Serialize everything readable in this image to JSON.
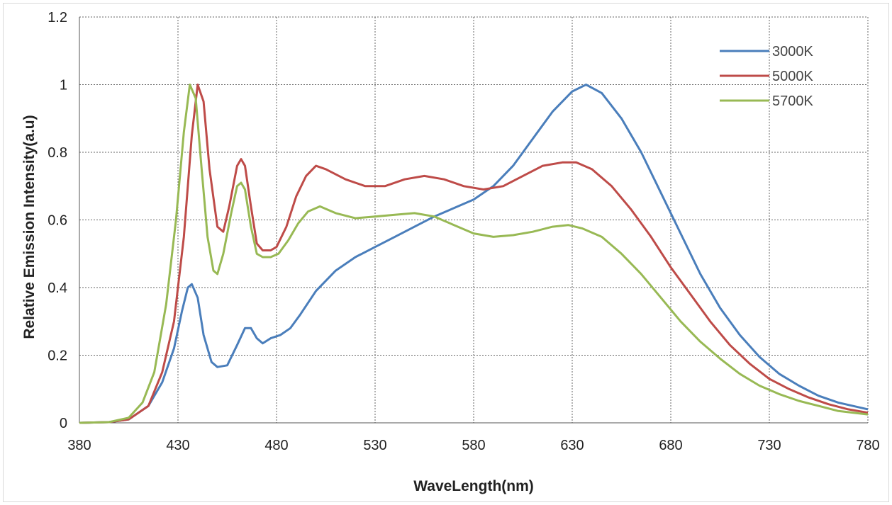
{
  "chart_data": {
    "type": "line",
    "xlabel": "WaveLength(nm)",
    "ylabel": "Relative Emission Intensity(a.u)",
    "xlim": [
      380,
      780
    ],
    "ylim": [
      0,
      1.2
    ],
    "x_ticks": [
      380,
      430,
      480,
      530,
      580,
      630,
      680,
      730,
      780
    ],
    "x_tick_labels": [
      "380",
      "430",
      "480",
      "530",
      "580",
      "630",
      "680",
      "730",
      "780"
    ],
    "y_ticks": [
      0,
      0.2,
      0.4,
      0.6,
      0.8,
      1,
      1.2
    ],
    "y_tick_labels": [
      "0",
      "0.2",
      "0.4",
      "0.6",
      "0.8",
      "1",
      "1.2"
    ],
    "grid": true,
    "legend_position": "top-right",
    "series": [
      {
        "name": "3000K",
        "color": "#4a7ebb",
        "points": [
          [
            380,
            0
          ],
          [
            395,
            0.002
          ],
          [
            405,
            0.01
          ],
          [
            415,
            0.05
          ],
          [
            422,
            0.12
          ],
          [
            428,
            0.22
          ],
          [
            432,
            0.33
          ],
          [
            435,
            0.4
          ],
          [
            437,
            0.41
          ],
          [
            440,
            0.37
          ],
          [
            443,
            0.26
          ],
          [
            447,
            0.18
          ],
          [
            450,
            0.165
          ],
          [
            455,
            0.17
          ],
          [
            460,
            0.23
          ],
          [
            464,
            0.28
          ],
          [
            467,
            0.28
          ],
          [
            470,
            0.25
          ],
          [
            473,
            0.235
          ],
          [
            477,
            0.25
          ],
          [
            482,
            0.26
          ],
          [
            487,
            0.28
          ],
          [
            492,
            0.32
          ],
          [
            500,
            0.39
          ],
          [
            510,
            0.45
          ],
          [
            520,
            0.49
          ],
          [
            530,
            0.52
          ],
          [
            540,
            0.55
          ],
          [
            550,
            0.58
          ],
          [
            560,
            0.61
          ],
          [
            570,
            0.635
          ],
          [
            580,
            0.66
          ],
          [
            590,
            0.7
          ],
          [
            600,
            0.76
          ],
          [
            610,
            0.84
          ],
          [
            620,
            0.92
          ],
          [
            630,
            0.98
          ],
          [
            637,
            1.0
          ],
          [
            645,
            0.975
          ],
          [
            655,
            0.9
          ],
          [
            665,
            0.8
          ],
          [
            675,
            0.68
          ],
          [
            685,
            0.56
          ],
          [
            695,
            0.44
          ],
          [
            705,
            0.34
          ],
          [
            715,
            0.26
          ],
          [
            725,
            0.195
          ],
          [
            735,
            0.145
          ],
          [
            745,
            0.11
          ],
          [
            755,
            0.08
          ],
          [
            765,
            0.06
          ],
          [
            780,
            0.04
          ]
        ]
      },
      {
        "name": "5000K",
        "color": "#be4b48",
        "points": [
          [
            380,
            0
          ],
          [
            395,
            0.002
          ],
          [
            405,
            0.01
          ],
          [
            415,
            0.05
          ],
          [
            422,
            0.15
          ],
          [
            428,
            0.3
          ],
          [
            433,
            0.55
          ],
          [
            437,
            0.85
          ],
          [
            440,
            1.0
          ],
          [
            443,
            0.95
          ],
          [
            446,
            0.75
          ],
          [
            450,
            0.58
          ],
          [
            453,
            0.565
          ],
          [
            456,
            0.64
          ],
          [
            460,
            0.76
          ],
          [
            462,
            0.78
          ],
          [
            464,
            0.76
          ],
          [
            467,
            0.64
          ],
          [
            470,
            0.53
          ],
          [
            473,
            0.51
          ],
          [
            477,
            0.51
          ],
          [
            480,
            0.52
          ],
          [
            485,
            0.58
          ],
          [
            490,
            0.67
          ],
          [
            495,
            0.73
          ],
          [
            500,
            0.76
          ],
          [
            505,
            0.75
          ],
          [
            515,
            0.72
          ],
          [
            525,
            0.7
          ],
          [
            535,
            0.7
          ],
          [
            545,
            0.72
          ],
          [
            555,
            0.73
          ],
          [
            565,
            0.72
          ],
          [
            575,
            0.7
          ],
          [
            585,
            0.69
          ],
          [
            595,
            0.7
          ],
          [
            605,
            0.73
          ],
          [
            615,
            0.76
          ],
          [
            625,
            0.77
          ],
          [
            632,
            0.77
          ],
          [
            640,
            0.75
          ],
          [
            650,
            0.7
          ],
          [
            660,
            0.63
          ],
          [
            670,
            0.55
          ],
          [
            680,
            0.46
          ],
          [
            690,
            0.38
          ],
          [
            700,
            0.3
          ],
          [
            710,
            0.23
          ],
          [
            720,
            0.175
          ],
          [
            730,
            0.13
          ],
          [
            740,
            0.1
          ],
          [
            750,
            0.075
          ],
          [
            760,
            0.055
          ],
          [
            770,
            0.04
          ],
          [
            780,
            0.03
          ]
        ]
      },
      {
        "name": "5700K",
        "color": "#98b954",
        "points": [
          [
            380,
            0
          ],
          [
            395,
            0.002
          ],
          [
            405,
            0.015
          ],
          [
            412,
            0.06
          ],
          [
            418,
            0.15
          ],
          [
            424,
            0.35
          ],
          [
            429,
            0.6
          ],
          [
            433,
            0.86
          ],
          [
            436,
            1.0
          ],
          [
            439,
            0.96
          ],
          [
            442,
            0.75
          ],
          [
            445,
            0.55
          ],
          [
            448,
            0.45
          ],
          [
            450,
            0.44
          ],
          [
            453,
            0.5
          ],
          [
            457,
            0.62
          ],
          [
            460,
            0.7
          ],
          [
            462,
            0.71
          ],
          [
            464,
            0.69
          ],
          [
            467,
            0.58
          ],
          [
            470,
            0.5
          ],
          [
            473,
            0.49
          ],
          [
            477,
            0.49
          ],
          [
            481,
            0.5
          ],
          [
            486,
            0.54
          ],
          [
            491,
            0.59
          ],
          [
            496,
            0.625
          ],
          [
            502,
            0.64
          ],
          [
            510,
            0.62
          ],
          [
            520,
            0.605
          ],
          [
            530,
            0.61
          ],
          [
            540,
            0.615
          ],
          [
            550,
            0.62
          ],
          [
            560,
            0.61
          ],
          [
            570,
            0.585
          ],
          [
            580,
            0.56
          ],
          [
            590,
            0.55
          ],
          [
            600,
            0.555
          ],
          [
            610,
            0.565
          ],
          [
            620,
            0.58
          ],
          [
            628,
            0.585
          ],
          [
            635,
            0.575
          ],
          [
            645,
            0.55
          ],
          [
            655,
            0.5
          ],
          [
            665,
            0.44
          ],
          [
            675,
            0.37
          ],
          [
            685,
            0.3
          ],
          [
            695,
            0.24
          ],
          [
            705,
            0.19
          ],
          [
            715,
            0.145
          ],
          [
            725,
            0.11
          ],
          [
            735,
            0.085
          ],
          [
            745,
            0.065
          ],
          [
            755,
            0.05
          ],
          [
            765,
            0.035
          ],
          [
            780,
            0.025
          ]
        ]
      }
    ]
  }
}
